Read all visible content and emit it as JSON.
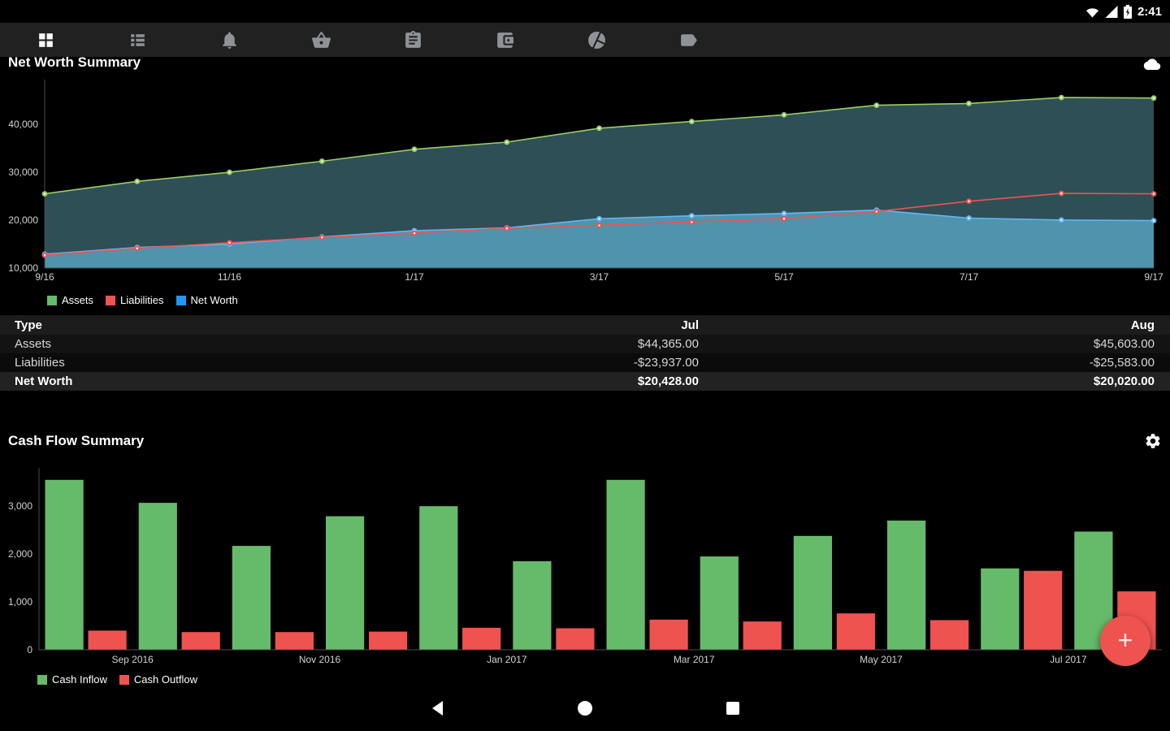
{
  "status_bar": {
    "time": "2:41",
    "icons": [
      "wifi-icon",
      "cellular-icon",
      "battery-charging-icon"
    ]
  },
  "toolbar": {
    "icons": [
      "grid-icon",
      "list-icon",
      "bell-icon",
      "basket-icon",
      "clipboard-icon",
      "wallet-icon",
      "pie-chart-icon",
      "tag-icon"
    ]
  },
  "theme": {
    "background": "#000000",
    "toolbar_bg": "#212121",
    "green": "#66bb6a",
    "red": "#ef5350",
    "blue": "#2196f3",
    "assets_line": "#9ccc65",
    "assets_fill": "#2e4f55",
    "networth_line": "#64b5f6",
    "networth_fill": "#4f93ad",
    "fab": "#ef5350"
  },
  "net_worth_table": {
    "col_type": "Type",
    "col_jul": "Jul",
    "col_aug": "Aug",
    "rows": [
      {
        "label": "Assets",
        "jul": "$44,365.00",
        "aug": "$45,603.00"
      },
      {
        "label": "Liabilities",
        "jul": "-$23,937.00",
        "aug": "-$25,583.00"
      },
      {
        "label": "Net Worth",
        "jul": "$20,428.00",
        "aug": "$20,020.00"
      }
    ]
  },
  "fab": {
    "icon": "plus-icon",
    "label": "+"
  },
  "nav_bar": {
    "icons": [
      "back-icon",
      "home-icon",
      "recents-icon"
    ]
  },
  "chart_data": [
    {
      "type": "area",
      "title": "Net Worth Summary",
      "x": [
        "9/16",
        "10/16",
        "11/16",
        "12/16",
        "1/17",
        "2/17",
        "3/17",
        "4/17",
        "5/17",
        "6/17",
        "7/17",
        "8/17",
        "9/17"
      ],
      "ylim": [
        10000,
        48000
      ],
      "yticks": [
        {
          "v": 10000,
          "label": "10,000"
        },
        {
          "v": 20000,
          "label": "20,000"
        },
        {
          "v": 30000,
          "label": "30,000"
        },
        {
          "v": 40000,
          "label": "40,000"
        }
      ],
      "xticks": [
        {
          "i": 0,
          "label": "9/16"
        },
        {
          "i": 2,
          "label": "11/16"
        },
        {
          "i": 4,
          "label": "1/17"
        },
        {
          "i": 6,
          "label": "3/17"
        },
        {
          "i": 8,
          "label": "5/17"
        },
        {
          "i": 10,
          "label": "7/17"
        },
        {
          "i": 12,
          "label": "9/17"
        }
      ],
      "series": [
        {
          "name": "Assets",
          "color": "#9ccc65",
          "fill": "#2e4f55",
          "values": [
            25500,
            28100,
            30000,
            32300,
            34800,
            36300,
            39200,
            40600,
            42000,
            44000,
            44365,
            45603,
            45500
          ]
        },
        {
          "name": "Net Worth",
          "color": "#64b5f6",
          "fill": "#4f93ad",
          "values": [
            12900,
            14300,
            15000,
            16500,
            17800,
            18400,
            20300,
            20900,
            21400,
            22100,
            20428,
            20020,
            19900
          ]
        },
        {
          "name": "Liabilities",
          "color": "#ef5350",
          "fill": null,
          "values": [
            12700,
            14100,
            15300,
            16400,
            17300,
            18300,
            18900,
            19600,
            20300,
            21800,
            23937,
            25583,
            25500
          ]
        }
      ],
      "legend_order": [
        "Assets",
        "Liabilities",
        "Net Worth"
      ]
    },
    {
      "type": "bar",
      "title": "Cash Flow Summary",
      "x": [
        "Aug 2016",
        "Sep 2016",
        "Oct 2016",
        "Nov 2016",
        "Dec 2016",
        "Jan 2017",
        "Feb 2017",
        "Mar 2017",
        "Apr 2017",
        "May 2017",
        "Jun 2017",
        "Jul 2017"
      ],
      "ylim": [
        0,
        3700
      ],
      "yticks": [
        {
          "v": 0,
          "label": "0"
        },
        {
          "v": 1000,
          "label": "1,000"
        },
        {
          "v": 2000,
          "label": "2,000"
        },
        {
          "v": 3000,
          "label": "3,000"
        }
      ],
      "xticks": [
        {
          "k": 1,
          "label": "Sep 2016"
        },
        {
          "k": 3,
          "label": "Nov 2016"
        },
        {
          "k": 5,
          "label": "Jan 2017"
        },
        {
          "k": 7,
          "label": "Mar 2017"
        },
        {
          "k": 9,
          "label": "May 2017"
        },
        {
          "k": 11,
          "label": "Jul 2017"
        }
      ],
      "series": [
        {
          "name": "Cash Inflow",
          "color": "#66bb6a",
          "values": [
            3550,
            3070,
            2170,
            2790,
            3000,
            1850,
            3550,
            1950,
            2380,
            2700,
            1700,
            2470
          ]
        },
        {
          "name": "Cash Outflow",
          "color": "#ef5350",
          "values": [
            400,
            370,
            370,
            380,
            460,
            450,
            630,
            590,
            760,
            620,
            1650,
            1220
          ]
        }
      ]
    }
  ]
}
